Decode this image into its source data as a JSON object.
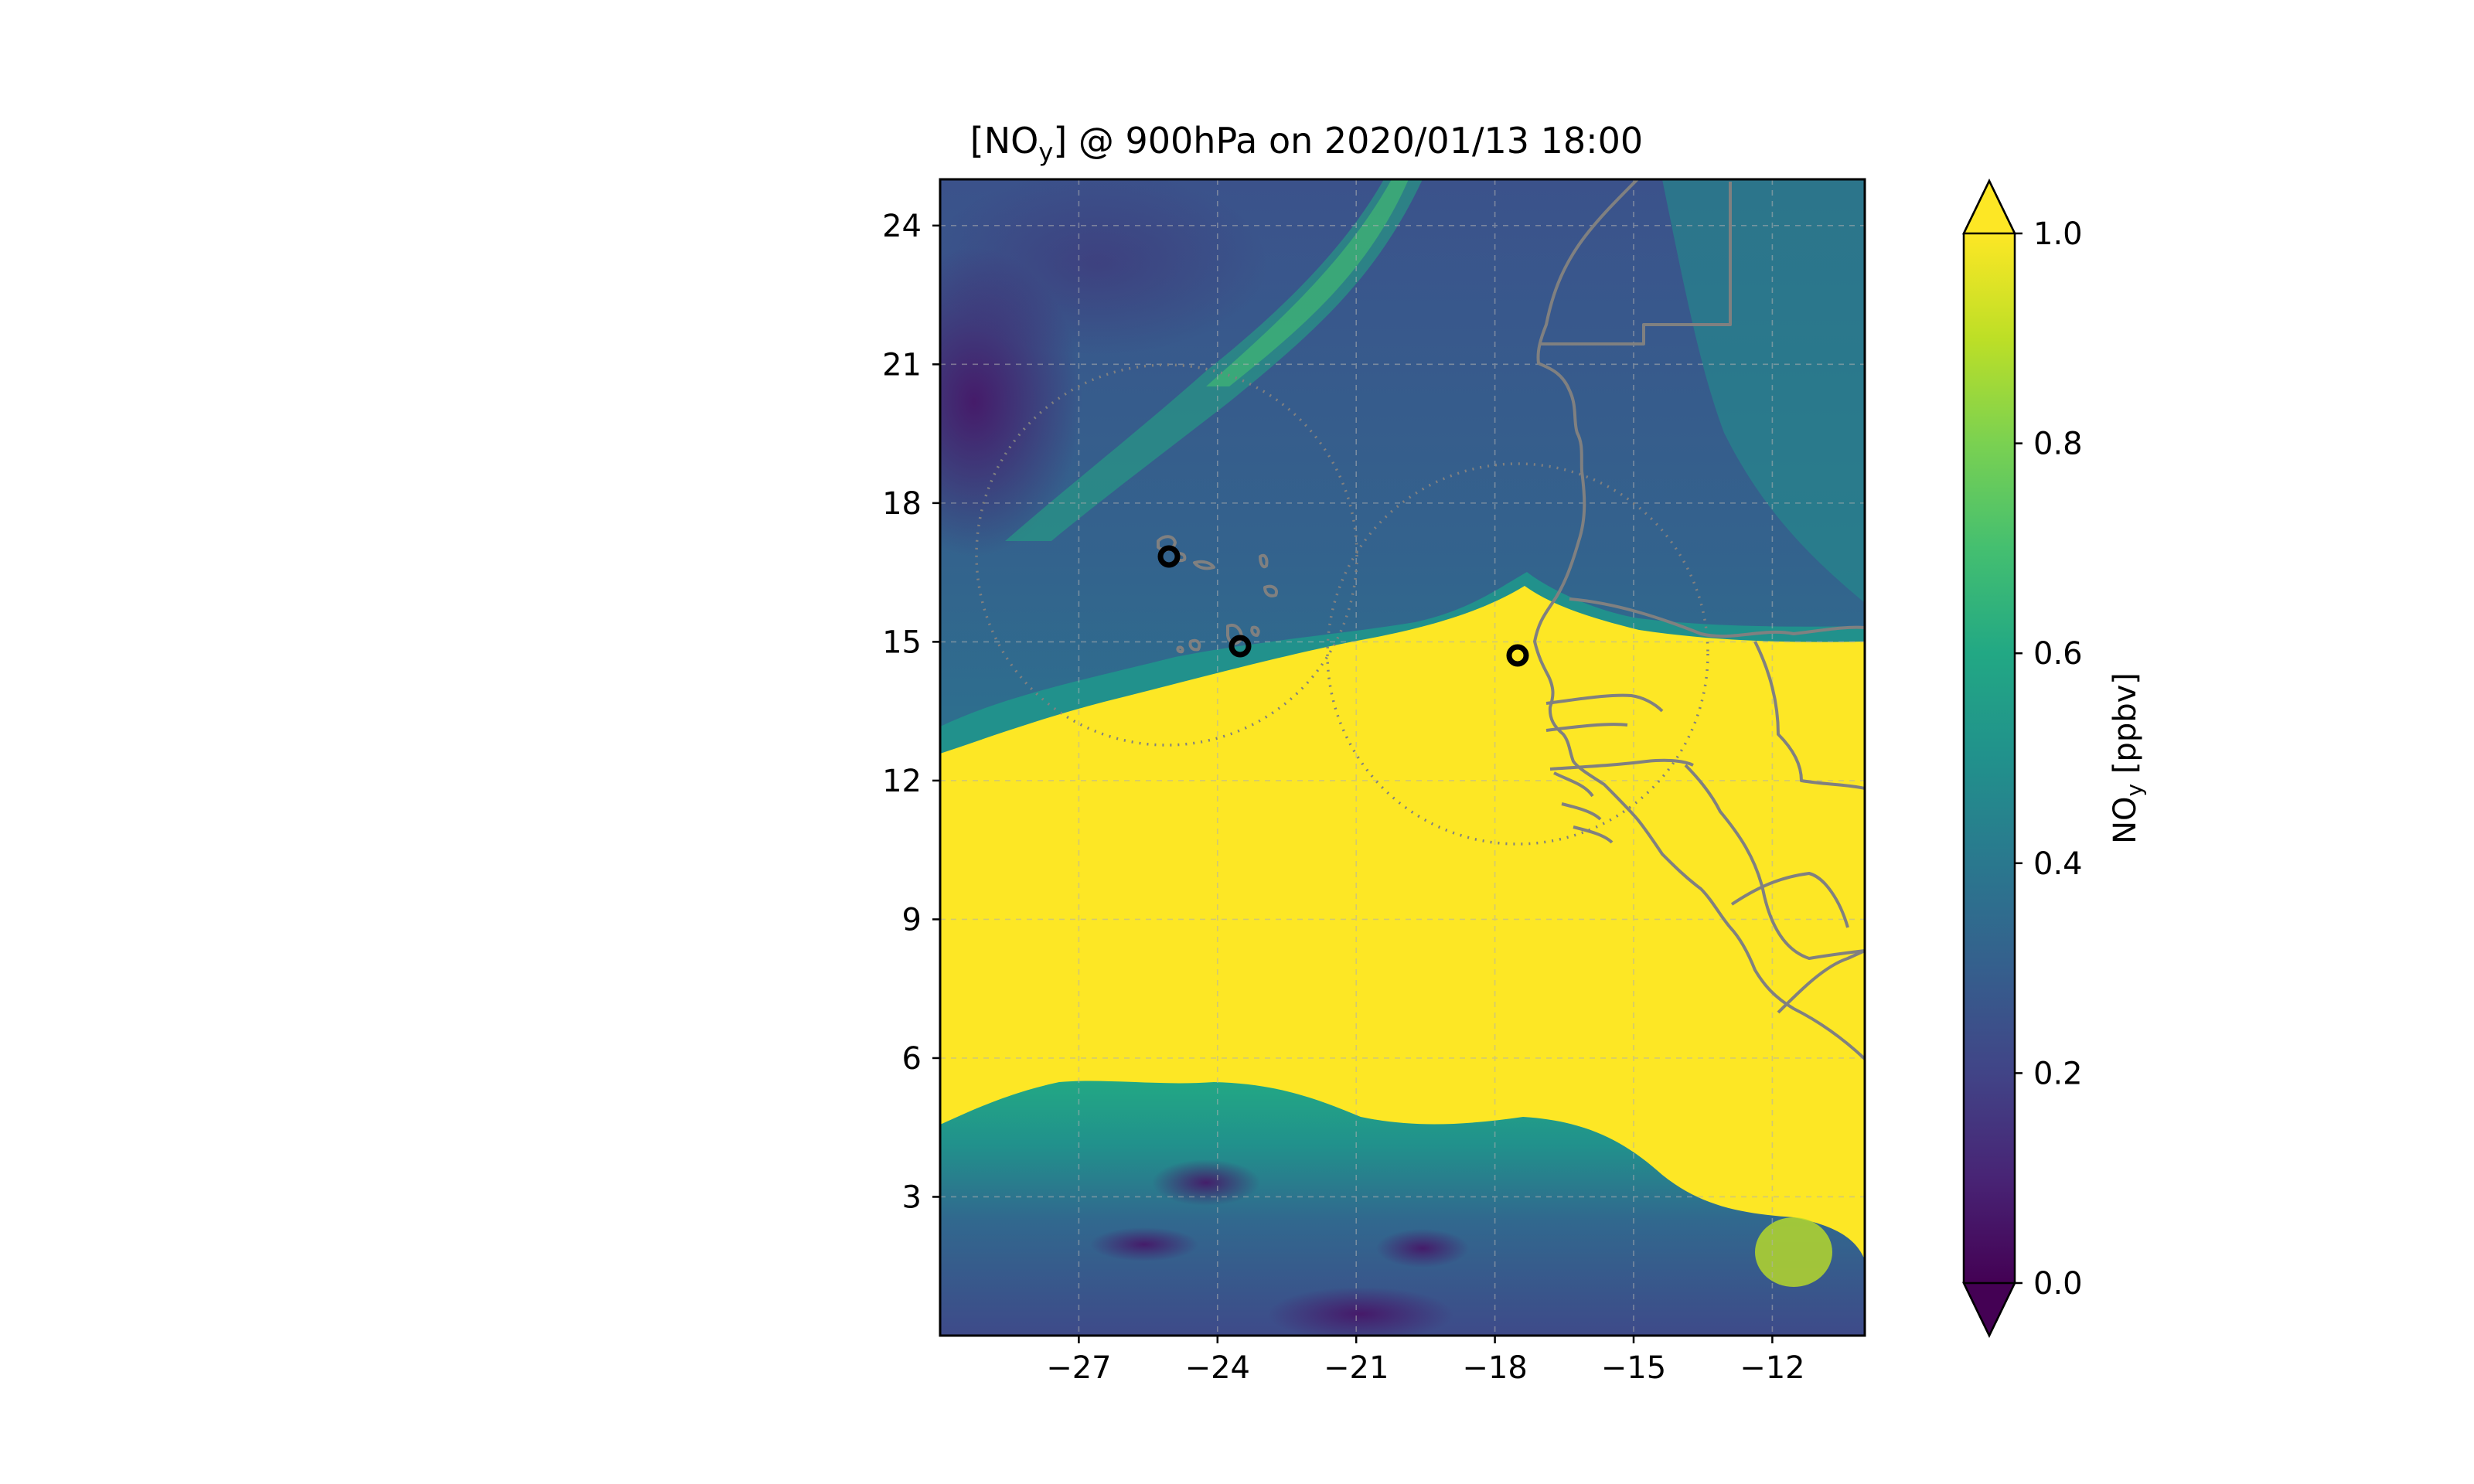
{
  "title": {
    "prefix": "[NO",
    "sub": "y",
    "suffix": "] @ 900hPa on 2020/01/13 18:00"
  },
  "map": {
    "lon_range": [
      -30,
      -10
    ],
    "lat_range": [
      0,
      25
    ],
    "x_ticks": [
      -27,
      -24,
      -21,
      -18,
      -15,
      -12
    ],
    "y_ticks": [
      3,
      6,
      9,
      12,
      15,
      18,
      21,
      24
    ],
    "x_tick_labels": [
      "−27",
      "−24",
      "−21",
      "−18",
      "−15",
      "−12"
    ],
    "y_tick_labels": [
      "3",
      "6",
      "9",
      "12",
      "15",
      "18",
      "21",
      "24"
    ],
    "gridlines": true,
    "range_rings": [
      {
        "lon": -25.1,
        "lat": 16.9,
        "radius_deg": 4.1
      },
      {
        "lon": -17.5,
        "lat": 14.7,
        "radius_deg": 4.1
      }
    ],
    "sites": [
      {
        "lon": -25.0,
        "lat": 16.9
      },
      {
        "lon": -23.5,
        "lat": 14.9
      },
      {
        "lon": -17.4,
        "lat": 14.7
      }
    ],
    "colors": {
      "coast": "#808080",
      "ring": "#808080",
      "site": "#000000",
      "high": "#fde725",
      "mid": "#21918c",
      "low": "#3b528b"
    }
  },
  "colorbar": {
    "label_prefix": "NO",
    "label_sub": "y",
    "label_suffix": " [ppbv]",
    "ticks": [
      0.0,
      0.2,
      0.4,
      0.6,
      0.8,
      1.0
    ],
    "tick_labels": [
      "0.0",
      "0.2",
      "0.4",
      "0.6",
      "0.8",
      "1.0"
    ],
    "range": [
      0,
      1
    ],
    "extend": "both",
    "colormap": "viridis"
  }
}
